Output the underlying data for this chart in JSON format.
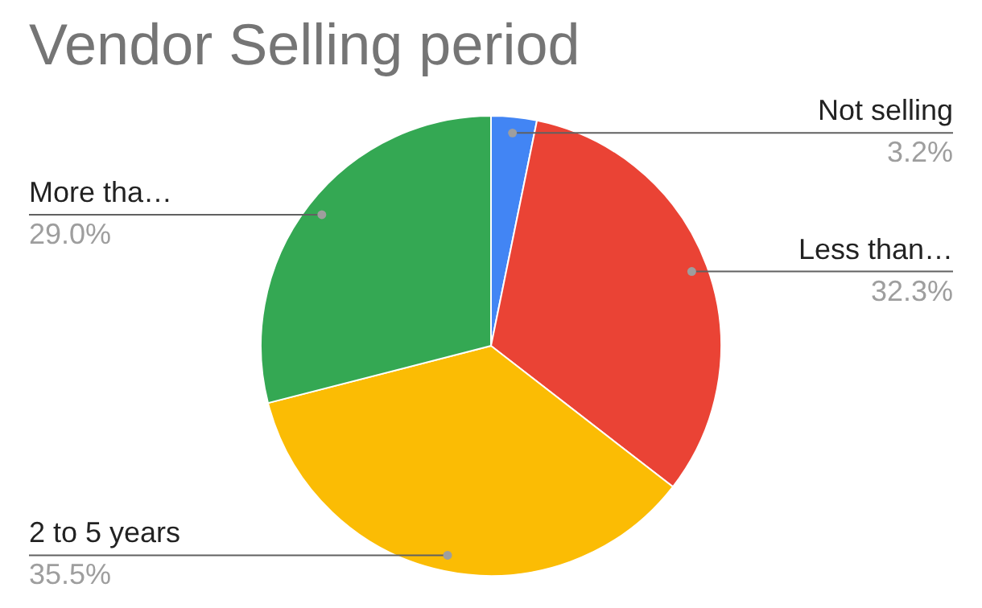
{
  "chart_data": {
    "type": "pie",
    "title": "Vendor Selling period",
    "categories": [
      "Not selling",
      "Less than…",
      "2 to 5 years",
      "More tha…"
    ],
    "values": [
      3.2,
      32.3,
      35.5,
      29.0
    ],
    "colors": [
      "#4285f4",
      "#ea4335",
      "#fbbc04",
      "#34a853"
    ],
    "value_labels": [
      "3.2%",
      "32.3%",
      "35.5%",
      "29.0%"
    ]
  }
}
